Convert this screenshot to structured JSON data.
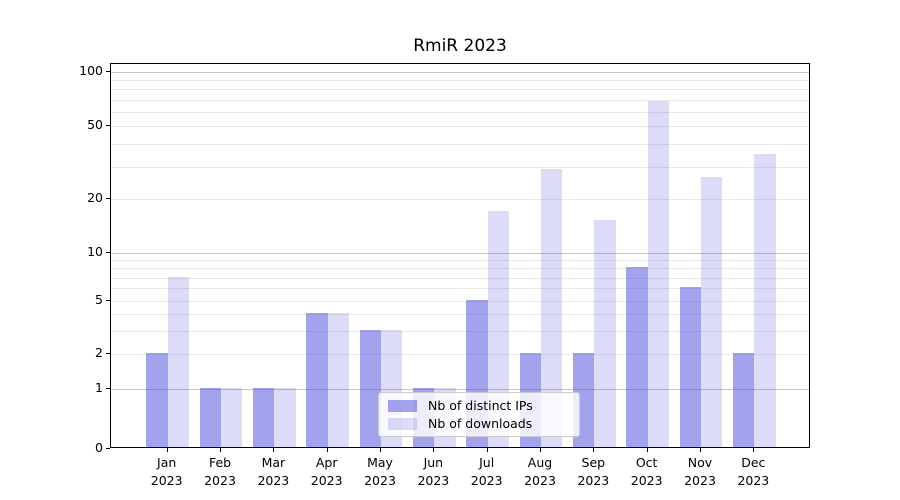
{
  "title": "RmiR 2023",
  "legend": {
    "entries": [
      {
        "label": "Nb of distinct IPs",
        "color": "rgba(82,82,221,0.53)"
      },
      {
        "label": "Nb of downloads",
        "color": "rgba(82,82,221,0.20)"
      }
    ]
  },
  "y_axis": {
    "tick_labels": [
      "100",
      "50",
      "20",
      "10",
      "5",
      "2",
      "1",
      "0"
    ]
  },
  "chart_data": {
    "type": "bar",
    "title": "RmiR 2023",
    "categories": [
      "Jan 2023",
      "Feb 2023",
      "Mar 2023",
      "Apr 2023",
      "May 2023",
      "Jun 2023",
      "Jul 2023",
      "Aug 2023",
      "Sep 2023",
      "Oct 2023",
      "Nov 2023",
      "Dec 2023"
    ],
    "series": [
      {
        "name": "Nb of distinct IPs",
        "values": [
          2,
          1,
          1,
          4,
          3,
          1,
          5,
          2,
          2,
          8,
          6,
          2
        ],
        "color": "rgba(82,82,221,0.53)"
      },
      {
        "name": "Nb of downloads",
        "values": [
          7,
          1,
          1,
          4,
          3,
          1,
          17,
          29,
          15,
          68,
          26,
          35
        ],
        "color": "rgba(82,82,221,0.20)"
      }
    ],
    "xlabel": "",
    "ylabel": "",
    "yscale": "symlog",
    "yticks": [
      0,
      1,
      2,
      5,
      10,
      20,
      50,
      100
    ],
    "ylim": [
      0,
      110
    ],
    "grid": true,
    "legend_position": "lower center"
  }
}
